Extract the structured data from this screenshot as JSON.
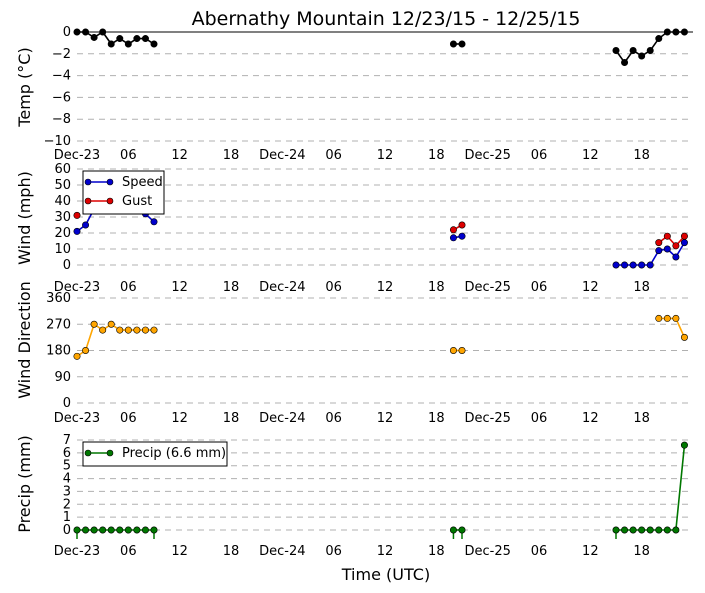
{
  "title": "Abernathy Mountain 12/23/15 - 12/25/15",
  "xlabel": "Time (UTC)",
  "x_tick_labels": [
    "Dec-23",
    "06",
    "12",
    "18",
    "Dec-24",
    "06",
    "12",
    "18",
    "Dec-25",
    "06",
    "12",
    "18"
  ],
  "chart_data": [
    {
      "type": "line",
      "ylabel": "Temp (°C)",
      "ylim": [
        -10,
        0
      ],
      "yticks": [
        0,
        -2,
        -4,
        -6,
        -8,
        -10
      ],
      "ytick_labels": [
        "0",
        "−2",
        "−4",
        "−6",
        "−8",
        "−10"
      ],
      "grid": true,
      "legend": null,
      "series": [
        {
          "color": "#000000",
          "segments": [
            [
              [
                0,
                0
              ],
              [
                1,
                0
              ],
              [
                2,
                -0.5
              ],
              [
                3,
                0
              ],
              [
                4,
                -1.1
              ],
              [
                5,
                -0.6
              ],
              [
                6,
                -1.1
              ],
              [
                7,
                -0.6
              ],
              [
                8,
                -0.6
              ],
              [
                9,
                -1.1
              ]
            ],
            [
              [
                44,
                -1.1
              ],
              [
                45,
                -1.1
              ]
            ],
            [
              [
                63,
                -1.7
              ],
              [
                64,
                -2.8
              ],
              [
                65,
                -1.7
              ],
              [
                66,
                -2.2
              ],
              [
                67,
                -1.7
              ],
              [
                68,
                -0.6
              ],
              [
                69,
                0
              ],
              [
                70,
                0
              ],
              [
                71,
                0
              ]
            ]
          ]
        }
      ]
    },
    {
      "type": "line",
      "ylabel": "Wind (mph)",
      "ylim": [
        0,
        60
      ],
      "yticks": [
        0,
        10,
        20,
        30,
        40,
        50,
        60
      ],
      "ytick_labels": [
        "0",
        "10",
        "20",
        "30",
        "40",
        "50",
        "60"
      ],
      "grid": true,
      "legend": "top-left",
      "series": [
        {
          "name": "Speed",
          "color": "#0000cc",
          "segments": [
            [
              [
                0,
                21
              ],
              [
                1,
                25
              ],
              [
                2,
                35
              ],
              [
                3,
                36
              ],
              [
                4,
                36
              ],
              [
                5,
                35
              ],
              [
                6,
                35
              ],
              [
                7,
                34
              ],
              [
                8,
                32
              ],
              [
                9,
                27
              ]
            ],
            [
              [
                44,
                17
              ],
              [
                45,
                18
              ]
            ],
            [
              [
                63,
                0
              ],
              [
                64,
                0
              ],
              [
                65,
                0
              ],
              [
                66,
                0
              ],
              [
                67,
                0
              ],
              [
                68,
                9
              ],
              [
                69,
                10
              ],
              [
                70,
                5
              ],
              [
                71,
                14
              ]
            ]
          ]
        },
        {
          "name": "Gust",
          "color": "#dd0000",
          "segments": [
            [
              [
                0,
                31
              ]
            ],
            [
              [
                44,
                22
              ],
              [
                45,
                25
              ]
            ],
            [
              [
                68,
                14
              ],
              [
                69,
                18
              ],
              [
                70,
                12
              ],
              [
                71,
                18
              ]
            ]
          ]
        }
      ]
    },
    {
      "type": "line",
      "ylabel": "Wind Direction",
      "ylim": [
        0,
        360
      ],
      "yticks": [
        0,
        90,
        180,
        270,
        360
      ],
      "ytick_labels": [
        "0",
        "90",
        "180",
        "270",
        "360"
      ],
      "grid": true,
      "legend": null,
      "series": [
        {
          "color": "#ffa500",
          "segments": [
            [
              [
                0,
                160
              ],
              [
                1,
                180
              ],
              [
                2,
                270
              ],
              [
                3,
                250
              ],
              [
                4,
                270
              ],
              [
                5,
                250
              ],
              [
                6,
                250
              ],
              [
                7,
                250
              ],
              [
                8,
                250
              ],
              [
                9,
                250
              ]
            ],
            [
              [
                44,
                180
              ],
              [
                45,
                180
              ]
            ],
            [
              [
                68,
                290
              ],
              [
                69,
                290
              ],
              [
                70,
                290
              ],
              [
                71,
                225
              ]
            ]
          ]
        }
      ]
    },
    {
      "type": "line",
      "ylabel": "Precip (mm)",
      "ylim": [
        0,
        7
      ],
      "yticks": [
        0,
        1,
        2,
        3,
        4,
        5,
        6,
        7
      ],
      "ytick_labels": [
        "0",
        "1",
        "2",
        "3",
        "4",
        "5",
        "6",
        "7"
      ],
      "grid": true,
      "legend": "top-left",
      "series": [
        {
          "name": "Precip (6.6 mm)",
          "color": "#007700",
          "segments": [
            [
              [
                0,
                0
              ],
              [
                1,
                0
              ],
              [
                2,
                0
              ],
              [
                3,
                0
              ],
              [
                4,
                0
              ],
              [
                5,
                0
              ],
              [
                6,
                0
              ],
              [
                7,
                0
              ],
              [
                8,
                0
              ],
              [
                9,
                0
              ]
            ],
            [
              [
                44,
                0
              ],
              [
                45,
                0
              ]
            ],
            [
              [
                63,
                0
              ],
              [
                64,
                0
              ],
              [
                65,
                0
              ],
              [
                66,
                0
              ],
              [
                67,
                0
              ],
              [
                68,
                0
              ],
              [
                69,
                0
              ],
              [
                70,
                0
              ],
              [
                71,
                6.6
              ]
            ]
          ]
        }
      ],
      "tick_marks_x": [
        0,
        9,
        44,
        45,
        63
      ]
    }
  ]
}
